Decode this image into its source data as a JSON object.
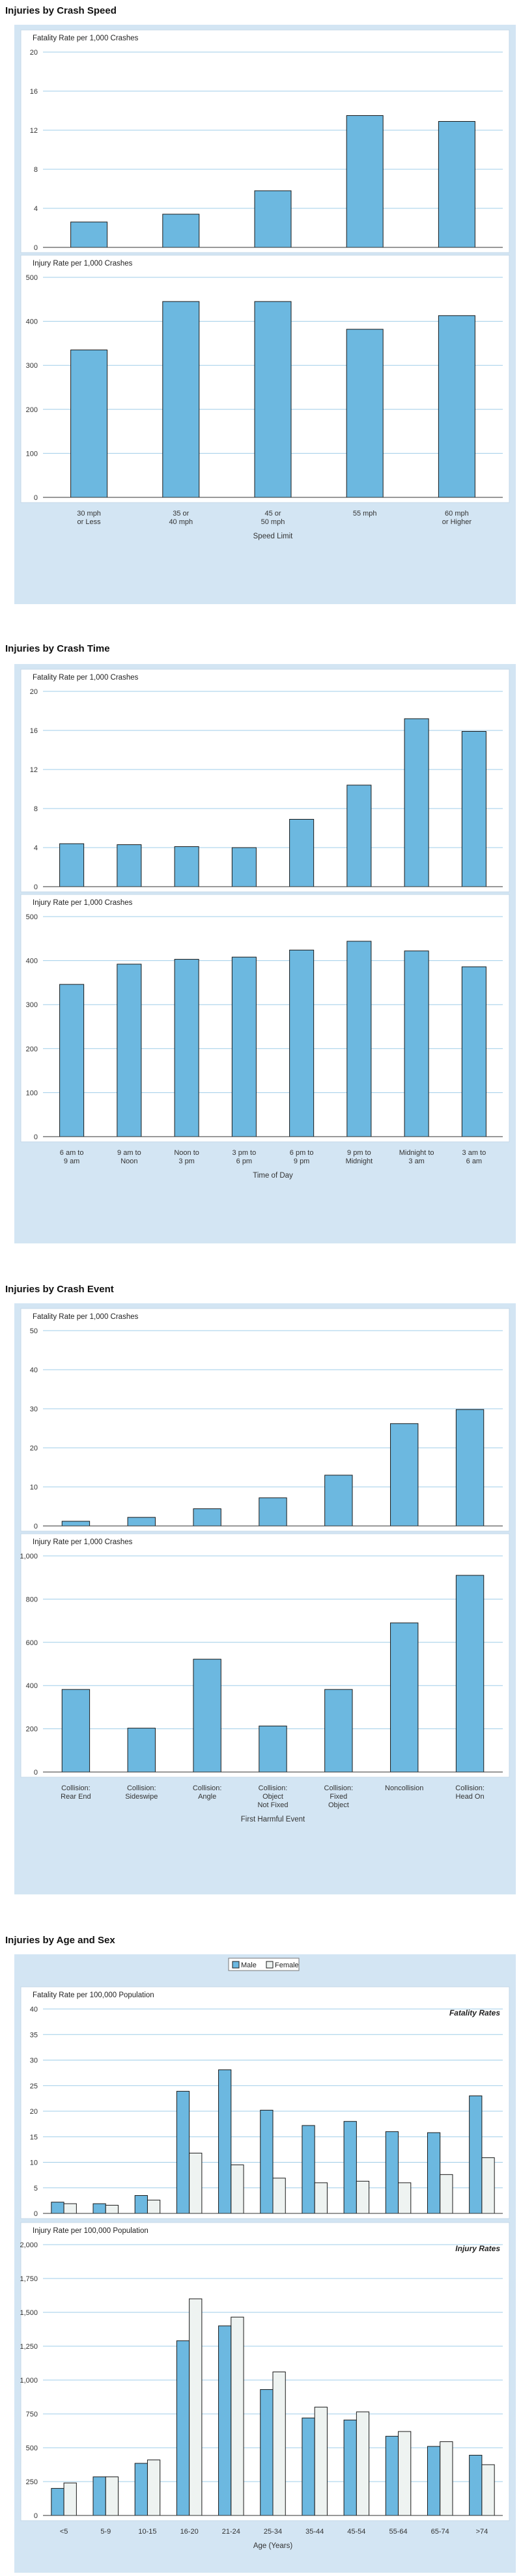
{
  "sections": [
    {
      "title": "Injuries by Crash Speed"
    },
    {
      "title": "Injuries by Crash Time"
    },
    {
      "title": "Injuries by Crash Event"
    },
    {
      "title": "Injuries by Age and Sex"
    }
  ],
  "colors": {
    "bar": "#6cb8e0",
    "male": "#6cb8e0",
    "female": "#eef3f1",
    "panel": "#d3e5f3",
    "grid": "#9fcde8"
  },
  "chart_data": [
    {
      "type": "bar",
      "group": "Injuries by Crash Speed",
      "title": "Fatality Rate per 1,000 Crashes",
      "categories": [
        "30 mph\nor Less",
        "35 or\n40 mph",
        "45 or\n50 mph",
        "55 mph",
        "60 mph\nor Higher"
      ],
      "values": [
        2.6,
        3.4,
        5.8,
        13.5,
        12.9
      ],
      "ylim": [
        0,
        20
      ],
      "yticks": [
        0,
        4,
        8,
        12,
        16,
        20
      ],
      "xlabel": "",
      "grid": true
    },
    {
      "type": "bar",
      "group": "Injuries by Crash Speed",
      "title": "Injury Rate per 1,000 Crashes",
      "categories": [
        "30 mph\nor Less",
        "35 or\n40 mph",
        "45 or\n50 mph",
        "55 mph",
        "60 mph\nor Higher"
      ],
      "values": [
        335,
        445,
        445,
        382,
        413
      ],
      "ylim": [
        0,
        500
      ],
      "yticks": [
        0,
        100,
        200,
        300,
        400,
        500
      ],
      "xlabel": "Speed Limit",
      "grid": true
    },
    {
      "type": "bar",
      "group": "Injuries by Crash Time",
      "title": "Fatality Rate per 1,000 Crashes",
      "categories": [
        "6 am to\n9 am",
        "9 am to\nNoon",
        "Noon to\n3 pm",
        "3 pm to\n6 pm",
        "6 pm to\n9 pm",
        "9 pm to\nMidnight",
        "Midnight to\n3 am",
        "3 am to\n6 am"
      ],
      "values": [
        4.4,
        4.3,
        4.1,
        4.0,
        6.9,
        10.4,
        17.2,
        15.9
      ],
      "ylim": [
        0,
        20
      ],
      "yticks": [
        0,
        4,
        8,
        12,
        16,
        20
      ],
      "xlabel": "",
      "grid": true
    },
    {
      "type": "bar",
      "group": "Injuries by Crash Time",
      "title": "Injury Rate per 1,000 Crashes",
      "categories": [
        "6 am to\n9 am",
        "9 am to\nNoon",
        "Noon to\n3 pm",
        "3 pm to\n6 pm",
        "6 pm to\n9 pm",
        "9 pm to\nMidnight",
        "Midnight to\n3 am",
        "3 am to\n6 am"
      ],
      "values": [
        346,
        392,
        403,
        408,
        424,
        444,
        422,
        386
      ],
      "ylim": [
        0,
        500
      ],
      "yticks": [
        0,
        100,
        200,
        300,
        400,
        500
      ],
      "xlabel": "Time of Day",
      "grid": true
    },
    {
      "type": "bar",
      "group": "Injuries by Crash Event",
      "title": "Fatality Rate per 1,000 Crashes",
      "categories": [
        "Collision:\nRear End",
        "Collision:\nSideswipe",
        "Collision:\nAngle",
        "Collision:\nObject\nNot Fixed",
        "Collision:\nFixed\nObject",
        "Noncollision",
        "Collision:\nHead On"
      ],
      "values": [
        1.2,
        2.2,
        4.4,
        7.2,
        13.0,
        26.2,
        29.8
      ],
      "ylim": [
        0,
        50
      ],
      "yticks": [
        0,
        10,
        20,
        30,
        40,
        50
      ],
      "xlabel": "",
      "grid": true
    },
    {
      "type": "bar",
      "group": "Injuries by Crash Event",
      "title": "Injury Rate per 1,000 Crashes",
      "categories": [
        "Collision:\nRear End",
        "Collision:\nSideswipe",
        "Collision:\nAngle",
        "Collision:\nObject\nNot Fixed",
        "Collision:\nFixed\nObject",
        "Noncollision",
        "Collision:\nHead On"
      ],
      "values": [
        382,
        203,
        522,
        213,
        382,
        690,
        910
      ],
      "ylim": [
        0,
        1000
      ],
      "yticks": [
        0,
        200,
        400,
        600,
        800,
        1000
      ],
      "ytick_labels": [
        "0",
        "200",
        "400",
        "600",
        "800",
        "1,000"
      ],
      "xlabel": "First Harmful Event",
      "grid": true
    },
    {
      "type": "bar",
      "group": "Injuries by Age and Sex",
      "title": "Fatality Rate per 100,000 Population",
      "annotation": "Fatality Rates",
      "legend": [
        "Male",
        "Female"
      ],
      "legend_position": "top-center",
      "categories": [
        "<5",
        "5-9",
        "10-15",
        "16-20",
        "21-24",
        "25-34",
        "35-44",
        "45-54",
        "55-64",
        "65-74",
        ">74"
      ],
      "series": [
        {
          "name": "Male",
          "values": [
            2.2,
            1.9,
            3.5,
            23.9,
            28.1,
            20.2,
            17.2,
            18.0,
            16.0,
            15.8,
            23.0
          ]
        },
        {
          "name": "Female",
          "values": [
            1.9,
            1.6,
            2.6,
            11.8,
            9.5,
            6.9,
            6.0,
            6.3,
            6.0,
            7.6,
            10.9
          ]
        }
      ],
      "ylim": [
        0,
        40
      ],
      "yticks": [
        0,
        5,
        10,
        15,
        20,
        25,
        30,
        35,
        40
      ],
      "xlabel": "",
      "grid": true
    },
    {
      "type": "bar",
      "group": "Injuries by Age and Sex",
      "title": "Injury Rate per 100,000 Population",
      "annotation": "Injury Rates",
      "categories": [
        "<5",
        "5-9",
        "10-15",
        "16-20",
        "21-24",
        "25-34",
        "35-44",
        "45-54",
        "55-64",
        "65-74",
        ">74"
      ],
      "series": [
        {
          "name": "Male",
          "values": [
            200,
            285,
            385,
            1290,
            1400,
            930,
            720,
            705,
            585,
            510,
            445
          ]
        },
        {
          "name": "Female",
          "values": [
            240,
            285,
            410,
            1600,
            1465,
            1060,
            800,
            765,
            620,
            545,
            375
          ]
        }
      ],
      "ylim": [
        0,
        2000
      ],
      "yticks": [
        0,
        250,
        500,
        750,
        1000,
        1250,
        1500,
        1750,
        2000
      ],
      "ytick_labels": [
        "0",
        "250",
        "500",
        "750",
        "1,000",
        "1,250",
        "1,500",
        "1,750",
        "2,000"
      ],
      "xlabel": "Age (Years)",
      "grid": true
    }
  ]
}
